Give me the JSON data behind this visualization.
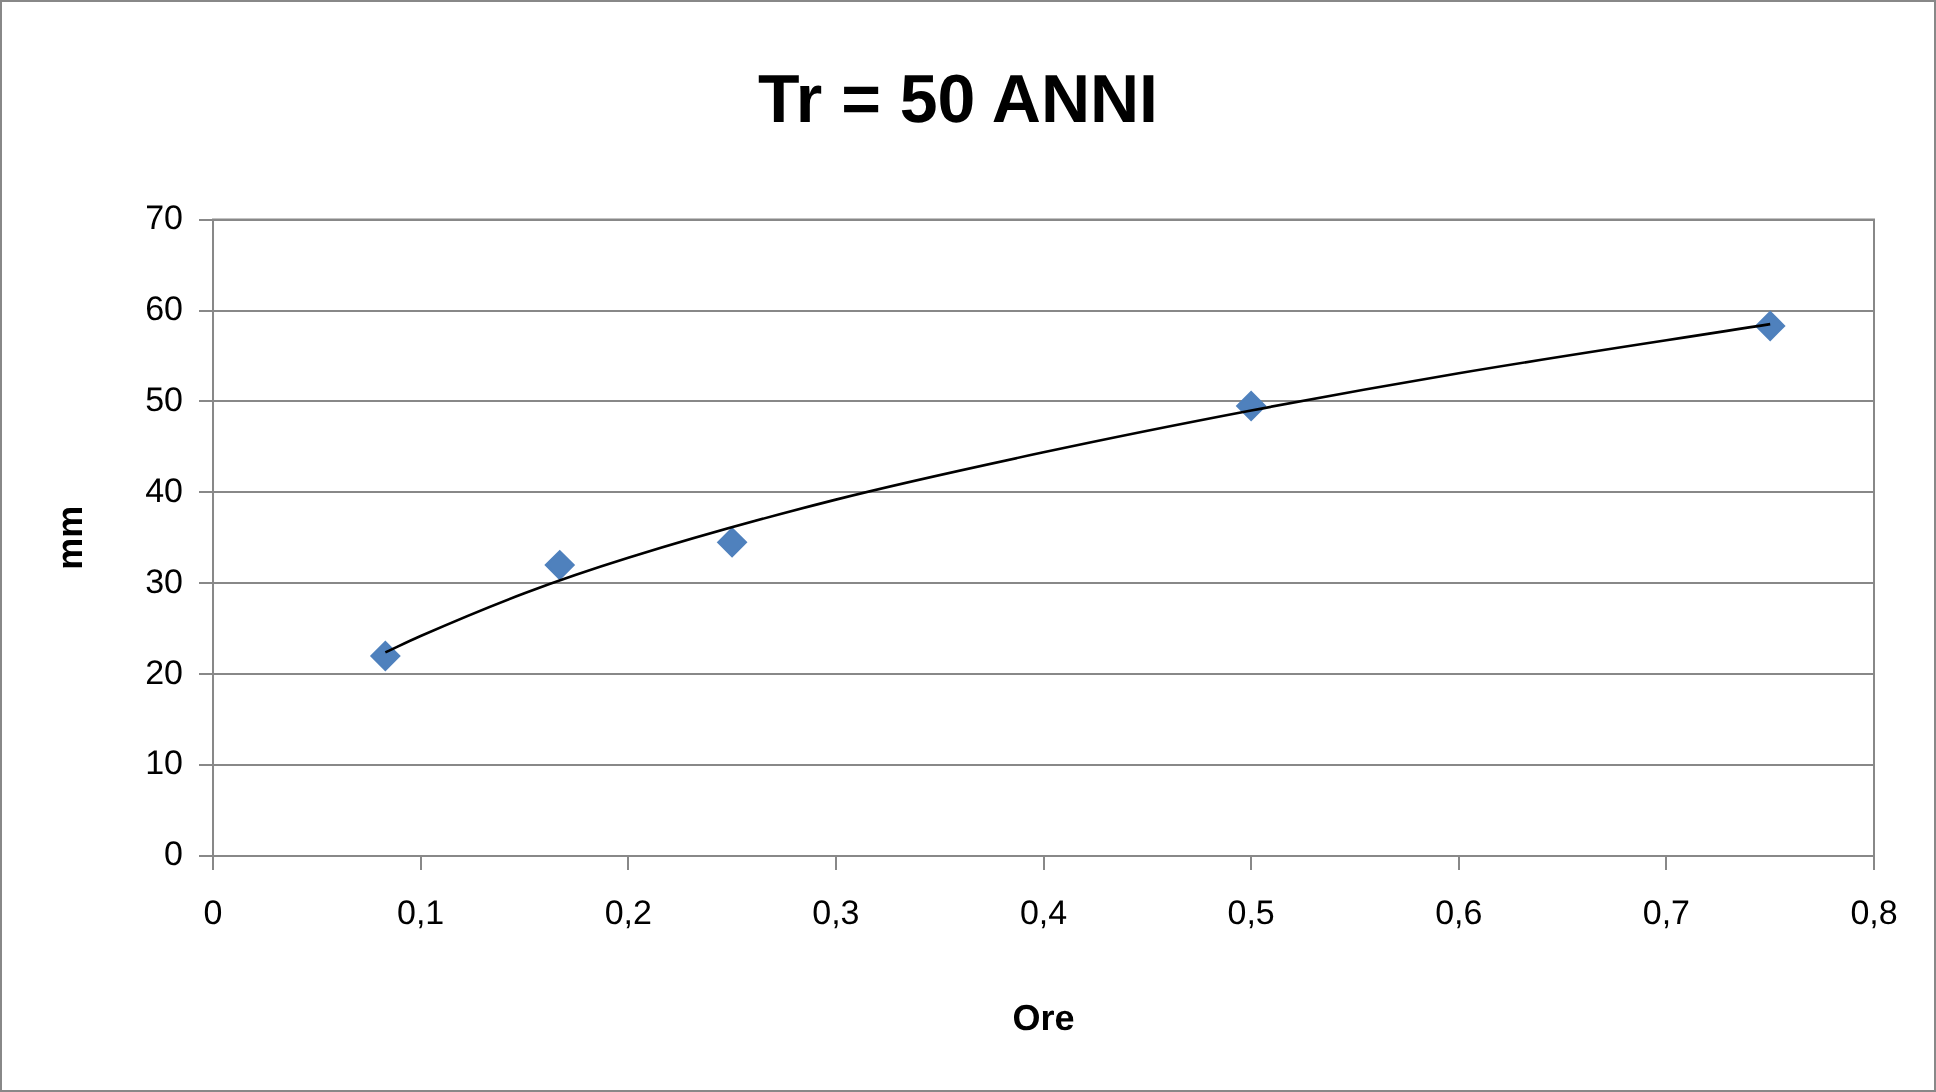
{
  "chart_data": {
    "type": "scatter",
    "title": "Tr = 50 ANNI",
    "xlabel": "Ore",
    "ylabel": "mm",
    "xlim": [
      0,
      0.8
    ],
    "xticks": [
      {
        "value": 0,
        "label": "0"
      },
      {
        "value": 0.1,
        "label": "0,1"
      },
      {
        "value": 0.2,
        "label": "0,2"
      },
      {
        "value": 0.3,
        "label": "0,3"
      },
      {
        "value": 0.4,
        "label": "0,4"
      },
      {
        "value": 0.5,
        "label": "0,5"
      },
      {
        "value": 0.6,
        "label": "0,6"
      },
      {
        "value": 0.7,
        "label": "0,7"
      },
      {
        "value": 0.8,
        "label": "0,8"
      }
    ],
    "ylim": [
      0,
      70
    ],
    "yticks": [
      0,
      10,
      20,
      30,
      40,
      50,
      60,
      70
    ],
    "grid": "y",
    "legend": false,
    "series": [
      {
        "color": "#4f81bd",
        "marker": "diamond",
        "x": [
          0.083,
          0.167,
          0.25,
          0.5,
          0.75
        ],
        "values": [
          22,
          32,
          34.5,
          49.5,
          58.3
        ]
      },
      {
        "type": "line",
        "color": "#000000",
        "marker": "none",
        "line_style": "solid",
        "x": [
          0.083,
          0.1,
          0.15,
          0.2,
          0.3,
          0.4,
          0.5,
          0.6,
          0.75
        ],
        "values": [
          22.4,
          24.2,
          28.9,
          32.8,
          39.2,
          44.4,
          49,
          53.1,
          58.5
        ]
      }
    ]
  }
}
